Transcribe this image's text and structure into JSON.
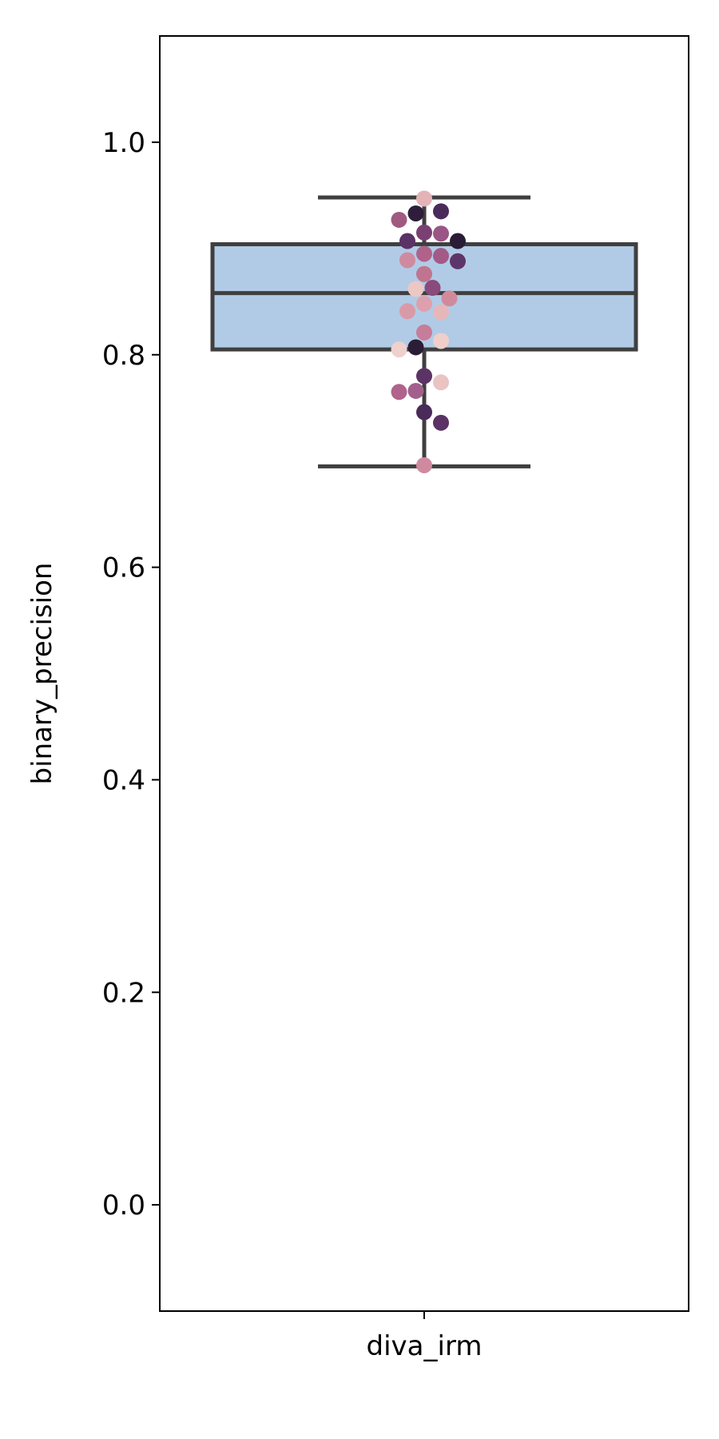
{
  "chart_data": {
    "type": "box",
    "title": "",
    "xlabel": "",
    "ylabel": "binary_precision",
    "ylim": [
      -0.1,
      1.1
    ],
    "yticks": [
      0.0,
      0.2,
      0.4,
      0.6,
      0.8,
      1.0
    ],
    "ytick_labels": [
      "0.0",
      "0.2",
      "0.4",
      "0.6",
      "0.8",
      "1.0"
    ],
    "categories": [
      "diva_irm"
    ],
    "grid": false,
    "legend": "none",
    "box": {
      "category": "diva_irm",
      "whisker_low": 0.695,
      "q1": 0.805,
      "median": 0.858,
      "q3": 0.904,
      "whisker_high": 0.948,
      "fill_color": "#b1cbe6",
      "line_color": "#3f3f3f"
    },
    "points": [
      {
        "y": 0.947,
        "color": "#e4b3b8"
      },
      {
        "y": 0.933,
        "color": "#2e1e3b"
      },
      {
        "y": 0.935,
        "color": "#4a2b5a"
      },
      {
        "y": 0.927,
        "color": "#a0597f"
      },
      {
        "y": 0.915,
        "color": "#7a3f73"
      },
      {
        "y": 0.914,
        "color": "#9a5585"
      },
      {
        "y": 0.907,
        "color": "#5a3266"
      },
      {
        "y": 0.907,
        "color": "#2a1b36"
      },
      {
        "y": 0.895,
        "color": "#b0638a"
      },
      {
        "y": 0.893,
        "color": "#a35a86"
      },
      {
        "y": 0.889,
        "color": "#d08aa0"
      },
      {
        "y": 0.888,
        "color": "#5e356a"
      },
      {
        "y": 0.876,
        "color": "#c07490"
      },
      {
        "y": 0.863,
        "color": "#8a4a7c"
      },
      {
        "y": 0.862,
        "color": "#ecc8c5"
      },
      {
        "y": 0.853,
        "color": "#d18a9b"
      },
      {
        "y": 0.848,
        "color": "#dea0ac"
      },
      {
        "y": 0.841,
        "color": "#d99aa8"
      },
      {
        "y": 0.84,
        "color": "#e6b7b9"
      },
      {
        "y": 0.821,
        "color": "#c67d99"
      },
      {
        "y": 0.813,
        "color": "#f0cfcb"
      },
      {
        "y": 0.807,
        "color": "#2b1d36"
      },
      {
        "y": 0.805,
        "color": "#efd0cd"
      },
      {
        "y": 0.78,
        "color": "#5b3365"
      },
      {
        "y": 0.774,
        "color": "#eac3c3"
      },
      {
        "y": 0.766,
        "color": "#a3608c"
      },
      {
        "y": 0.765,
        "color": "#b0638c"
      },
      {
        "y": 0.746,
        "color": "#4a2a59"
      },
      {
        "y": 0.736,
        "color": "#5a3266"
      },
      {
        "y": 0.696,
        "color": "#d08aa0"
      }
    ]
  }
}
